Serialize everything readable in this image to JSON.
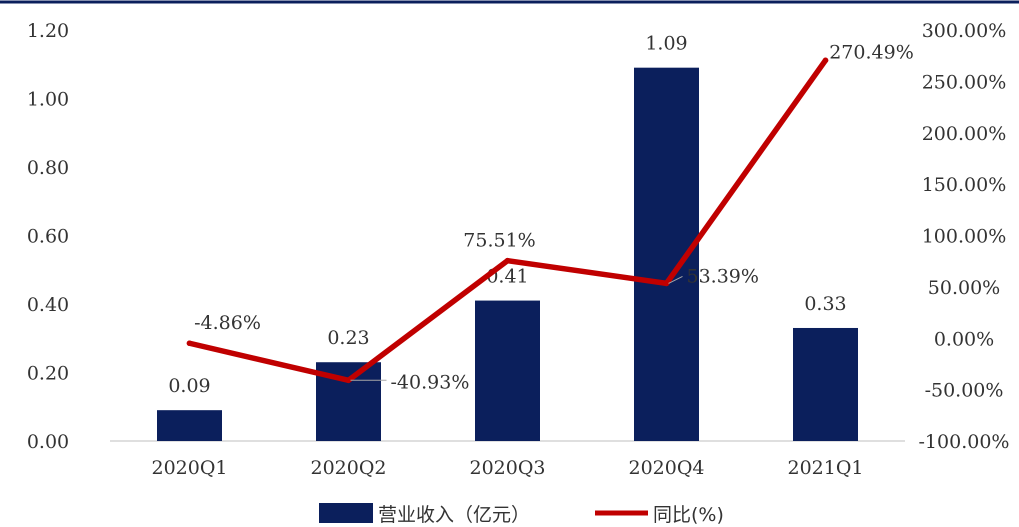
{
  "chart_data": {
    "type": "bar",
    "categories": [
      "2020Q1",
      "2020Q2",
      "2020Q3",
      "2020Q4",
      "2021Q1"
    ],
    "series": [
      {
        "name": "营业收入（亿元）",
        "type": "bar",
        "axis": "left",
        "values": [
          0.09,
          0.23,
          0.41,
          1.09,
          0.33
        ],
        "labels": [
          "0.09",
          "0.23",
          "0.41",
          "1.09",
          "0.33"
        ],
        "color": "#0b1f5c"
      },
      {
        "name": "同比(%)",
        "type": "line",
        "axis": "right",
        "values": [
          -4.86,
          -40.93,
          75.51,
          53.39,
          270.49
        ],
        "labels": [
          "-4.86%",
          "-40.93%",
          "75.51%",
          "53.39%",
          "270.49%"
        ],
        "color": "#c00000"
      }
    ],
    "y_left": {
      "range": [
        0,
        1.2
      ],
      "ticks": [
        0,
        0.2,
        0.4,
        0.6,
        0.8,
        1.0,
        1.2
      ],
      "tick_labels": [
        "0.00",
        "0.20",
        "0.40",
        "0.60",
        "0.80",
        "1.00",
        "1.20"
      ]
    },
    "y_right": {
      "range": [
        -100,
        300
      ],
      "ticks": [
        -100,
        -50,
        0,
        50,
        100,
        150,
        200,
        250,
        300
      ],
      "tick_labels": [
        "-100.00%",
        "-50.00%",
        "0.00%",
        "50.00%",
        "100.00%",
        "150.00%",
        "200.00%",
        "250.00%",
        "300.00%"
      ]
    },
    "grid": false,
    "legend": "bottom-center"
  }
}
